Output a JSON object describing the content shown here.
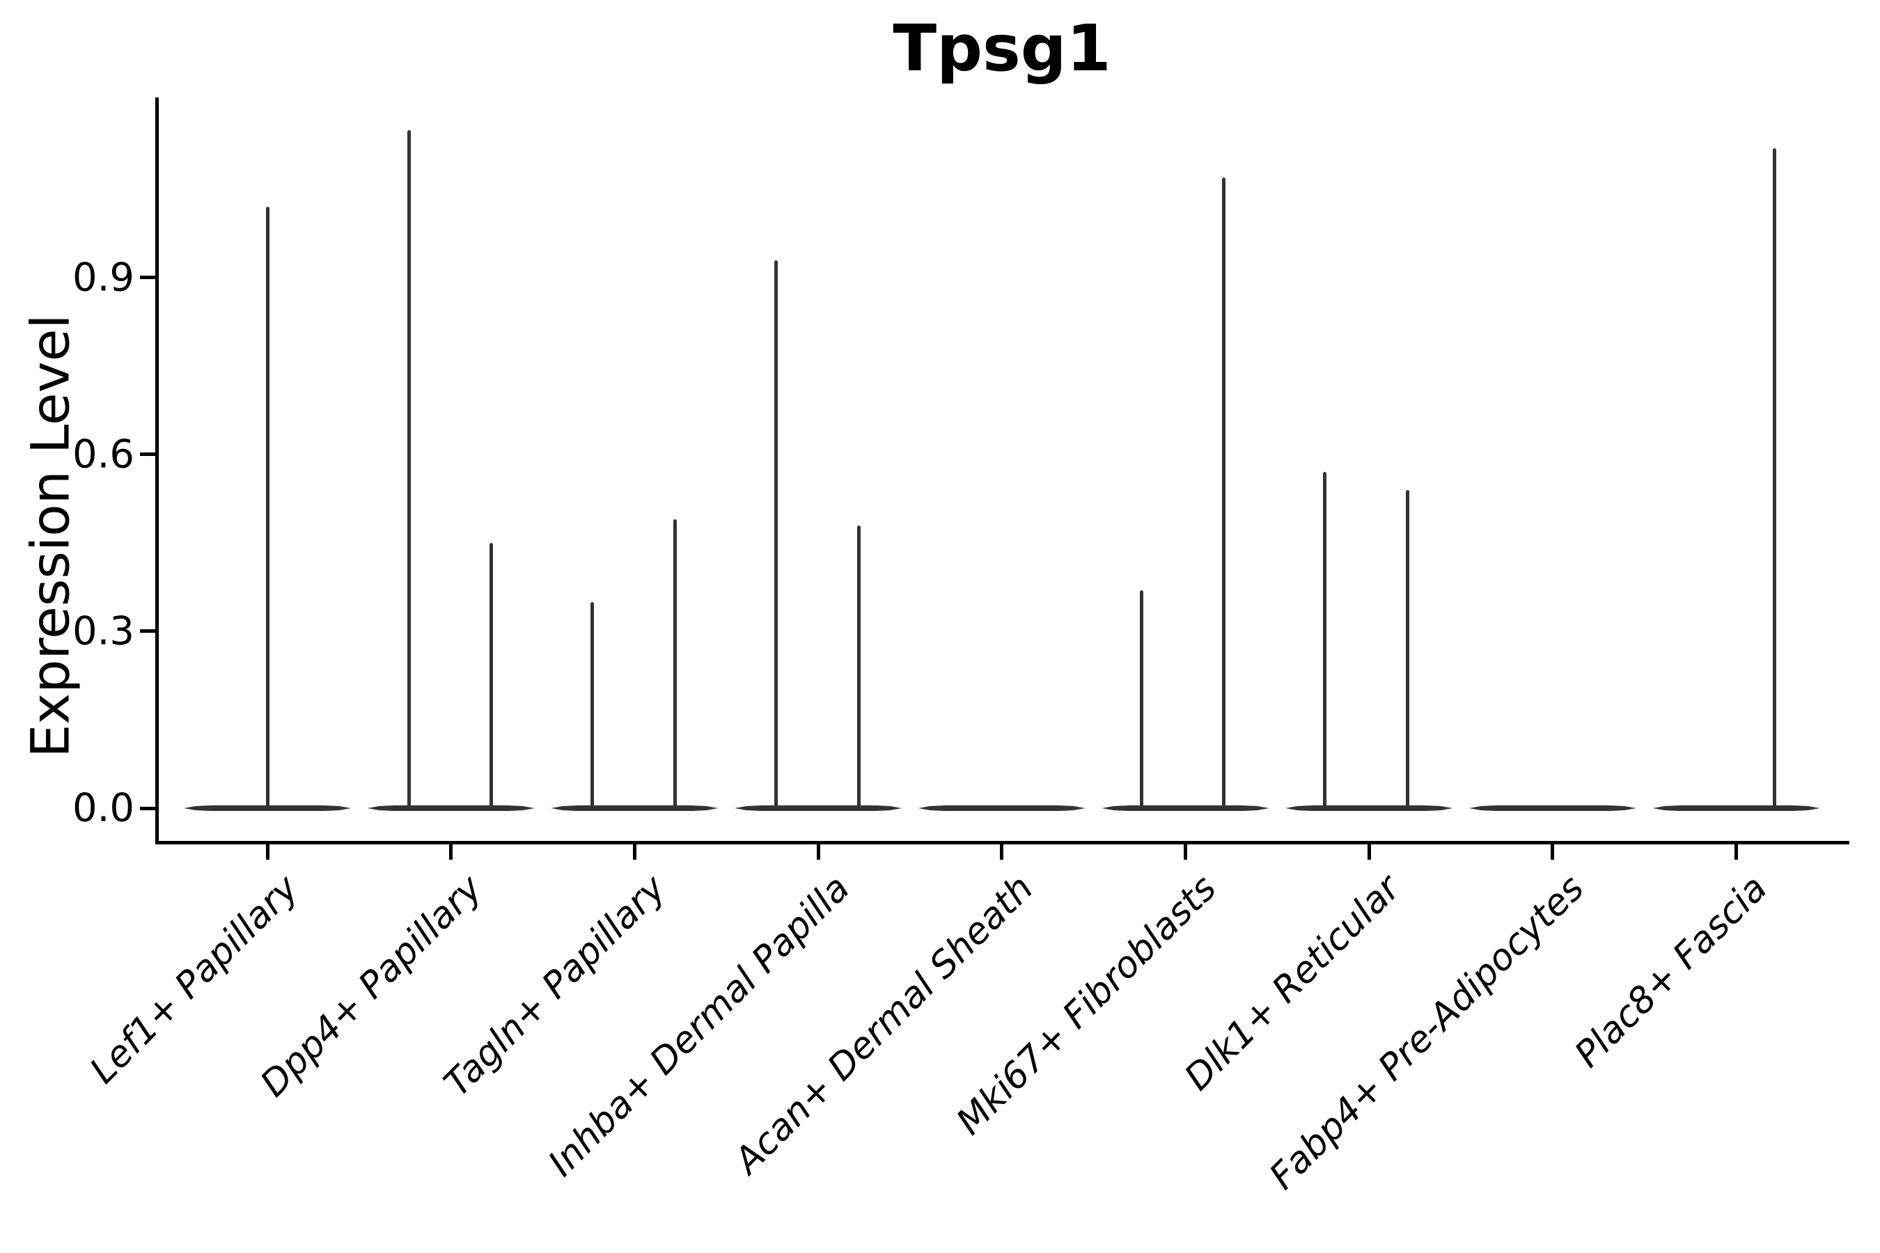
{
  "figure": {
    "title": "Tpsg1",
    "ylabel": "Expression Level"
  },
  "chart_data": {
    "type": "violin",
    "title": "Tpsg1",
    "xlabel": "",
    "ylabel": "Expression Level",
    "y_tick_labels": [
      "0.0",
      "0.3",
      "0.6",
      "0.9"
    ],
    "y_tick_values": [
      0.0,
      0.3,
      0.6,
      0.9
    ],
    "ylim": [
      -0.06,
      1.2
    ],
    "grid": false,
    "legend": "none",
    "line_color": "#333333",
    "axis_color": "#000000",
    "background_color": "#ffffff",
    "categories": [
      "Lef1+ Papillary",
      "Dpp4+ Papillary",
      "Tagln+ Papillary",
      "Inhba+ Dermal Papilla",
      "Acan+ Dermal Sheath",
      "Mki67+ Fibroblasts",
      "Dlk1+ Reticular",
      "Fabp4+ Pre-Adipocytes",
      "Plac8+ Fascia"
    ],
    "violins": [
      {
        "category": "Lef1+ Papillary",
        "base_value": 0.0,
        "spikes": [
          {
            "offset": 0.0,
            "max": 1.02
          }
        ]
      },
      {
        "category": "Dpp4+ Papillary",
        "base_value": 0.0,
        "spikes": [
          {
            "offset": -0.23,
            "max": 1.15
          },
          {
            "offset": 0.22,
            "max": 0.45
          }
        ]
      },
      {
        "category": "Tagln+ Papillary",
        "base_value": 0.0,
        "spikes": [
          {
            "offset": -0.23,
            "max": 0.35
          },
          {
            "offset": 0.22,
            "max": 0.49
          }
        ]
      },
      {
        "category": "Inhba+ Dermal Papilla",
        "base_value": 0.0,
        "spikes": [
          {
            "offset": -0.23,
            "max": 0.93
          },
          {
            "offset": 0.22,
            "max": 0.48
          }
        ]
      },
      {
        "category": "Acan+ Dermal Sheath",
        "base_value": 0.0,
        "spikes": []
      },
      {
        "category": "Mki67+ Fibroblasts",
        "base_value": 0.0,
        "spikes": [
          {
            "offset": -0.24,
            "max": 0.37
          },
          {
            "offset": 0.21,
            "max": 1.07
          }
        ]
      },
      {
        "category": "Dlk1+ Reticular",
        "base_value": 0.0,
        "spikes": [
          {
            "offset": -0.24,
            "max": 0.57
          },
          {
            "offset": 0.21,
            "max": 0.54
          }
        ]
      },
      {
        "category": "Fabp4+ Pre-Adipocytes",
        "base_value": 0.0,
        "spikes": []
      },
      {
        "category": "Plac8+ Fascia",
        "base_value": 0.0,
        "spikes": [
          {
            "offset": 0.21,
            "max": 1.12
          }
        ]
      }
    ]
  }
}
